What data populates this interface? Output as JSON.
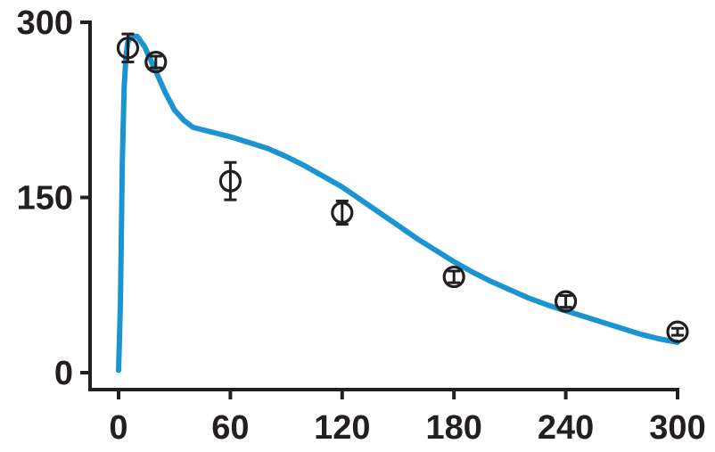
{
  "chart_data": {
    "type": "scatter",
    "title": "",
    "xlabel": "",
    "ylabel": "",
    "xlim": [
      0,
      300
    ],
    "ylim": [
      0,
      300
    ],
    "x_ticks": [
      "0",
      "60",
      "120",
      "180",
      "240",
      "300"
    ],
    "y_ticks": [
      "0",
      "150",
      "300"
    ],
    "grid": false,
    "series": [
      {
        "kind": "scatter",
        "color": "#231f20",
        "marker": "open-circle",
        "points": [
          {
            "x": 5,
            "y": 278,
            "err": 12
          },
          {
            "x": 20,
            "y": 266,
            "err": 5
          },
          {
            "x": 60,
            "y": 164,
            "err": 16
          },
          {
            "x": 120,
            "y": 137,
            "err": 10
          },
          {
            "x": 180,
            "y": 82,
            "err": 5
          },
          {
            "x": 240,
            "y": 61,
            "err": 5
          },
          {
            "x": 300,
            "y": 35,
            "err": 3
          }
        ]
      },
      {
        "kind": "line",
        "color": "#1b95d2",
        "points": [
          {
            "x": 0,
            "y": 2
          },
          {
            "x": 1,
            "y": 60
          },
          {
            "x": 2,
            "y": 180
          },
          {
            "x": 3,
            "y": 245
          },
          {
            "x": 4,
            "y": 272
          },
          {
            "x": 5,
            "y": 283
          },
          {
            "x": 7,
            "y": 288
          },
          {
            "x": 10,
            "y": 288
          },
          {
            "x": 14,
            "y": 279
          },
          {
            "x": 20,
            "y": 258
          },
          {
            "x": 25,
            "y": 240
          },
          {
            "x": 30,
            "y": 225
          },
          {
            "x": 35,
            "y": 216
          },
          {
            "x": 40,
            "y": 210
          },
          {
            "x": 50,
            "y": 206
          },
          {
            "x": 60,
            "y": 202
          },
          {
            "x": 70,
            "y": 197
          },
          {
            "x": 80,
            "y": 192
          },
          {
            "x": 90,
            "y": 185
          },
          {
            "x": 100,
            "y": 177
          },
          {
            "x": 110,
            "y": 168
          },
          {
            "x": 120,
            "y": 159
          },
          {
            "x": 130,
            "y": 148
          },
          {
            "x": 140,
            "y": 137
          },
          {
            "x": 150,
            "y": 126
          },
          {
            "x": 160,
            "y": 115
          },
          {
            "x": 170,
            "y": 105
          },
          {
            "x": 180,
            "y": 95
          },
          {
            "x": 190,
            "y": 86
          },
          {
            "x": 200,
            "y": 78
          },
          {
            "x": 210,
            "y": 71
          },
          {
            "x": 220,
            "y": 64
          },
          {
            "x": 230,
            "y": 58
          },
          {
            "x": 240,
            "y": 53
          },
          {
            "x": 250,
            "y": 48
          },
          {
            "x": 260,
            "y": 43
          },
          {
            "x": 270,
            "y": 38
          },
          {
            "x": 280,
            "y": 33
          },
          {
            "x": 290,
            "y": 29
          },
          {
            "x": 300,
            "y": 26
          }
        ]
      }
    ]
  }
}
